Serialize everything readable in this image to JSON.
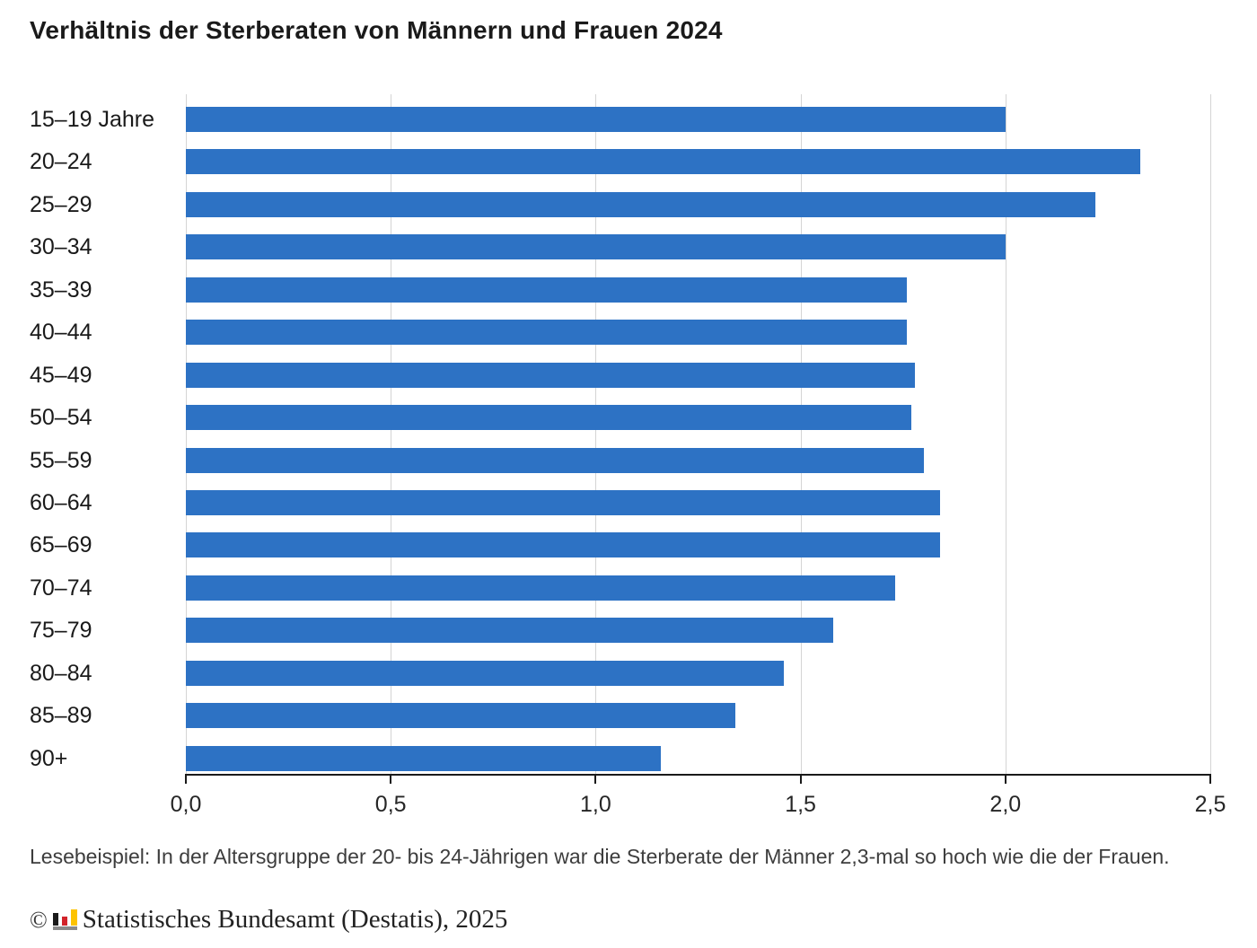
{
  "title": "Verhältnis der Sterberaten von Männern und Frauen 2024",
  "chart_data": {
    "type": "bar",
    "orientation": "horizontal",
    "title": "Verhältnis der Sterberaten von Männern und Frauen 2024",
    "categories": [
      "15–19 Jahre",
      "20–24",
      "25–29",
      "30–34",
      "35–39",
      "40–44",
      "45–49",
      "50–54",
      "55–59",
      "60–64",
      "65–69",
      "70–74",
      "75–79",
      "80–84",
      "85–89",
      "90+"
    ],
    "values": [
      2.0,
      2.33,
      2.22,
      2.0,
      1.76,
      1.76,
      1.78,
      1.77,
      1.8,
      1.84,
      1.84,
      1.73,
      1.58,
      1.46,
      1.34,
      1.16
    ],
    "xlim": [
      0,
      2.5
    ],
    "x_tick_labels": [
      "0,0",
      "0,5",
      "1,0",
      "1,5",
      "2,0",
      "2,5"
    ],
    "grid": "vertical gridlines at every 0,5",
    "legend": "none",
    "bar_color": "#2d72c4",
    "gridline_color": "#d4d4d4",
    "axis_color": "#1a1a1a"
  },
  "caption": "Lesebeispiel: In der Altersgruppe der 20- bis 24-Jährigen war die Sterberate der Männer 2,3-mal so hoch wie die der Frauen.",
  "footer": {
    "copyright": "©",
    "source": "Statistisches Bundesamt (Destatis), 2025",
    "logo_colors": {
      "black": "#1a1a1a",
      "red": "#d2232a",
      "gold": "#fdc300",
      "base": "#8a8a8a"
    }
  }
}
